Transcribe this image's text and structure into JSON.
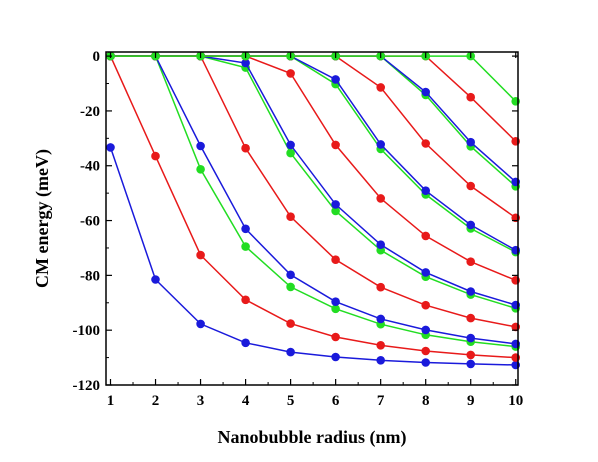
{
  "chart_data": {
    "type": "line",
    "xlabel": "Nanobubble radius (nm)",
    "ylabel": "CM energy (meV)",
    "xlim": [
      0.9,
      10.05
    ],
    "ylim": [
      -120,
      1.5
    ],
    "xticks": [
      "1",
      "2",
      "3",
      "4",
      "5",
      "6",
      "7",
      "8",
      "9",
      "10"
    ],
    "yticks": [
      "0",
      "-20",
      "-40",
      "-60",
      "-80",
      "-100",
      "-120"
    ],
    "grid": false,
    "legend": "none",
    "x": [
      1,
      2,
      3,
      4,
      5,
      6,
      7,
      8,
      9,
      10
    ],
    "series": [
      {
        "color": "#1a1adb",
        "values": [
          -33.3,
          -81.5,
          -97.7,
          -104.6,
          -108.0,
          -109.8,
          -111.0,
          -111.8,
          -112.3,
          -112.7
        ]
      },
      {
        "color": "#e81a1a",
        "values": [
          0,
          -36.5,
          -72.6,
          -88.9,
          -97.6,
          -102.5,
          -105.5,
          -107.6,
          -109.0,
          -110.0
        ]
      },
      {
        "color": "#22dd22",
        "values": [
          0,
          0,
          -41.3,
          -69.5,
          -84.2,
          -92.2,
          -97.8,
          -101.7,
          -104.2,
          -106.0
        ]
      },
      {
        "color": "#1a1adb",
        "values": [
          0,
          0,
          -32.8,
          -63.0,
          -79.8,
          -89.6,
          -95.9,
          -99.9,
          -102.9,
          -105.0
        ]
      },
      {
        "color": "#e81a1a",
        "values": [
          0,
          0,
          0,
          -33.6,
          -58.6,
          -74.3,
          -84.3,
          -90.9,
          -95.6,
          -98.8
        ]
      },
      {
        "color": "#22dd22",
        "values": [
          0,
          0,
          0,
          -4.2,
          -35.4,
          -56.5,
          -70.8,
          -80.5,
          -87.0,
          -92.0
        ]
      },
      {
        "color": "#1a1adb",
        "values": [
          0,
          0,
          0,
          -2.5,
          -32.4,
          -54.1,
          -68.8,
          -78.9,
          -85.9,
          -90.8
        ]
      },
      {
        "color": "#e81a1a",
        "values": [
          0,
          0,
          0,
          0,
          -6.3,
          -32.4,
          -51.9,
          -65.6,
          -75.0,
          -81.8
        ]
      },
      {
        "color": "#22dd22",
        "values": [
          0,
          0,
          0,
          0,
          0,
          -10.2,
          -33.9,
          -50.5,
          -62.9,
          -71.5
        ]
      },
      {
        "color": "#1a1adb",
        "values": [
          0,
          0,
          0,
          0,
          0,
          -8.5,
          -32.2,
          -49.1,
          -61.6,
          -70.8
        ]
      },
      {
        "color": "#e81a1a",
        "values": [
          0,
          0,
          0,
          0,
          0,
          0,
          -11.4,
          -31.9,
          -47.4,
          -59.0
        ]
      },
      {
        "color": "#22dd22",
        "values": [
          0,
          0,
          0,
          0,
          0,
          0,
          0,
          -14.2,
          -32.9,
          -47.5
        ]
      },
      {
        "color": "#1a1adb",
        "values": [
          0,
          0,
          0,
          0,
          0,
          0,
          0,
          -13.1,
          -31.4,
          -45.9
        ]
      },
      {
        "color": "#e81a1a",
        "values": [
          0,
          0,
          0,
          0,
          0,
          0,
          0,
          0,
          -15.0,
          -31.1
        ]
      },
      {
        "color": "#22dd22",
        "values": [
          0,
          0,
          0,
          0,
          0,
          0,
          0,
          0,
          0,
          -16.5
        ]
      }
    ]
  }
}
